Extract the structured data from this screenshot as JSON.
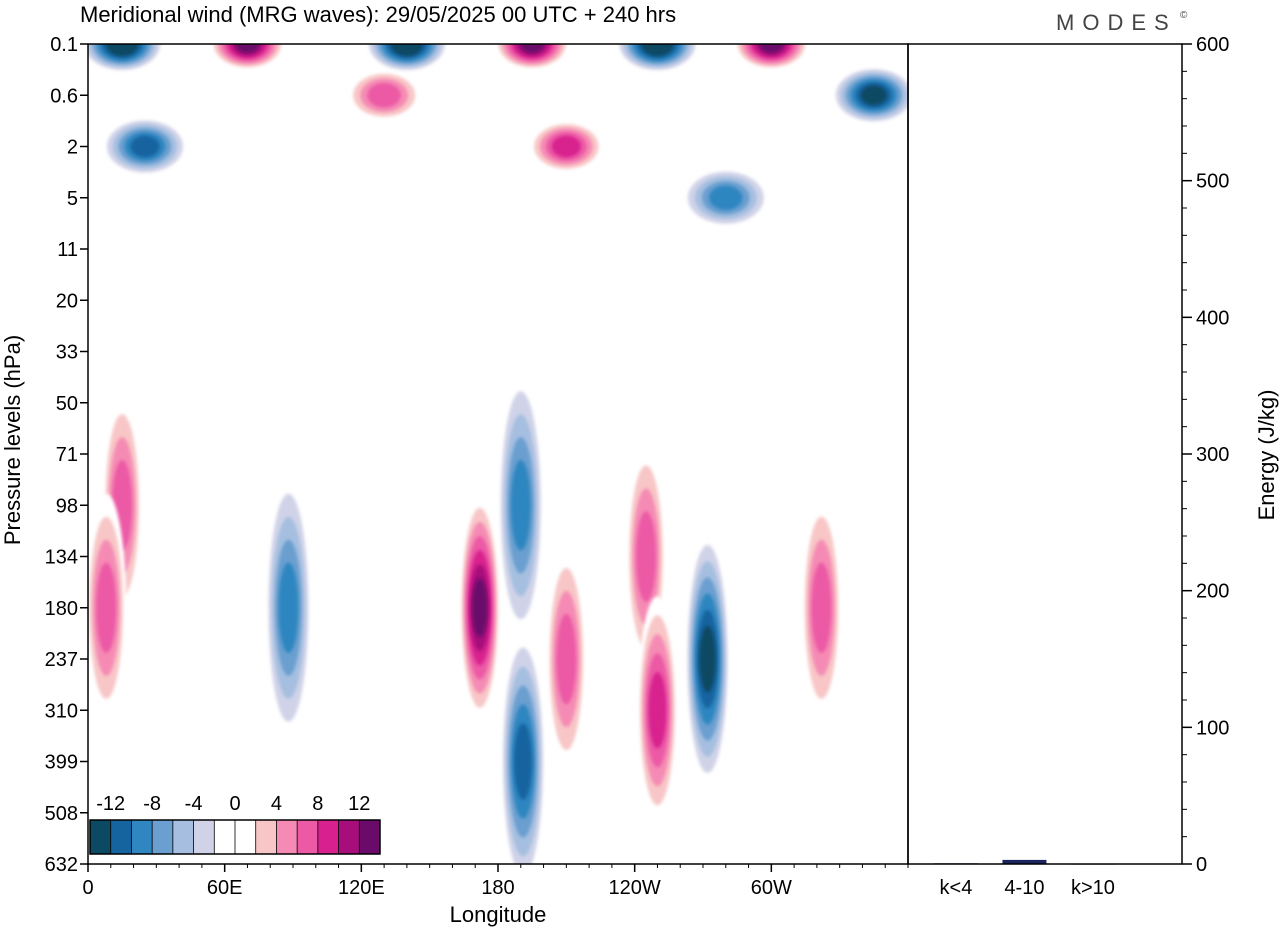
{
  "title": "Meridional wind (MRG waves):  29/05/2025  00 UTC  + 240 hrs",
  "logo": "MODES",
  "logo_mark": "©",
  "chart_data": [
    {
      "type": "heatmap",
      "xlabel": "Longitude",
      "ylabel": "Pressure levels (hPa)",
      "x_ticks": [
        "0",
        "60E",
        "120E",
        "180",
        "120W",
        "60W"
      ],
      "x_tick_values": [
        0,
        60,
        120,
        180,
        240,
        300
      ],
      "xlim": [
        0,
        360
      ],
      "y_ticks": [
        "0.1",
        "0.6",
        "2",
        "5",
        "11",
        "20",
        "33",
        "50",
        "71",
        "98",
        "134",
        "180",
        "237",
        "310",
        "399",
        "508",
        "632"
      ],
      "y_scale": "log-pressure (inverted)",
      "colorbar": {
        "labels": [
          "-12",
          "-8",
          "-4",
          "0",
          "4",
          "8",
          "12"
        ],
        "levels": [
          -14,
          -12,
          -10,
          -8,
          -6,
          -4,
          -2,
          0,
          2,
          4,
          6,
          8,
          10,
          12,
          14
        ],
        "colors": [
          "#0c4a64",
          "#1564a0",
          "#2f86c0",
          "#6a9fd0",
          "#a6bfe0",
          "#d0d3e8",
          "#ffffff",
          "#ffffff",
          "#f8c6c6",
          "#f58bb4",
          "#ec5aa6",
          "#d8208e",
          "#a80d7c",
          "#6a0a6a"
        ]
      },
      "features": [
        {
          "lon": 15,
          "level": "98",
          "value": 7
        },
        {
          "lon": 8,
          "level": "180",
          "value": 8
        },
        {
          "lon": 88,
          "level": "180",
          "value": -7
        },
        {
          "lon": 172,
          "level": "180",
          "value": 13
        },
        {
          "lon": 190,
          "level": "98",
          "value": -8
        },
        {
          "lon": 191,
          "level": "399",
          "value": -10
        },
        {
          "lon": 210,
          "level": "237",
          "value": 8
        },
        {
          "lon": 245,
          "level": "134",
          "value": 8
        },
        {
          "lon": 250,
          "level": "310",
          "value": 9
        },
        {
          "lon": 272,
          "level": "237",
          "value": -11
        },
        {
          "lon": 322,
          "level": "180",
          "value": 7
        },
        {
          "lon": 210,
          "level": "2",
          "value": 10
        },
        {
          "lon": 25,
          "level": "2",
          "value": -9
        },
        {
          "lon": 280,
          "level": "5",
          "value": -8
        },
        {
          "lon": 130,
          "level": "0.6",
          "value": 8
        },
        {
          "lon": 15,
          "level": "0.1",
          "value": -14
        },
        {
          "lon": 70,
          "level": "0.1",
          "value": 13
        },
        {
          "lon": 140,
          "level": "0.1",
          "value": -13
        },
        {
          "lon": 195,
          "level": "0.1",
          "value": 14
        },
        {
          "lon": 250,
          "level": "0.1",
          "value": -14
        },
        {
          "lon": 300,
          "level": "0.1",
          "value": 14
        },
        {
          "lon": 345,
          "level": "0.6",
          "value": -12
        }
      ]
    },
    {
      "type": "bar",
      "categories": [
        "k<4",
        "4-10",
        "k>10"
      ],
      "values": [
        0.5,
        3,
        0.3
      ],
      "bar_color": "#1a2460",
      "ylabel": "Energy (J/kg)",
      "ylim": [
        0,
        600
      ],
      "y_ticks": [
        "0",
        "100",
        "200",
        "300",
        "400",
        "500",
        "600"
      ],
      "y_tick_values": [
        0,
        100,
        200,
        300,
        400,
        500,
        600
      ]
    }
  ]
}
